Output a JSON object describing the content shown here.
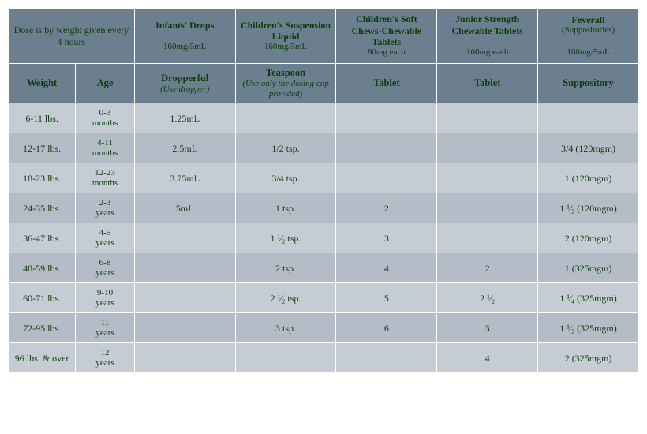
{
  "colors": {
    "header_bg": "#6b7f8f",
    "row_odd": "#c5ccd3",
    "row_even": "#b4bdc7",
    "text": "#0b3d0b",
    "border": "#ffffff"
  },
  "header_note": "Dose is by weight given every 4 hours",
  "products": [
    {
      "title": "Infants' Drops",
      "sub": "160mg/5mL"
    },
    {
      "title": "Children's Suspension Liquid",
      "sub": "160mg/5mL"
    },
    {
      "title": "Children's Soft Chews-Chewable Tablets",
      "sub": "80mg each"
    },
    {
      "title": "Junior Strength Chewable Tablets",
      "sub": "160mg each"
    },
    {
      "title": "Feverall",
      "sub2": "(Suppositories)",
      "sub": "160mg/5mL"
    }
  ],
  "subheaders": {
    "weight": "Weight",
    "age": "Age",
    "c0": {
      "label": "Dropperful",
      "note": "(Use dropper)"
    },
    "c1": {
      "label": "Teaspoon",
      "note": "(Use only the dosing cup provided)"
    },
    "c2": {
      "label": "Tablet"
    },
    "c3": {
      "label": "Tablet"
    },
    "c4": {
      "label": "Suppository"
    }
  },
  "rows": [
    {
      "weight": "6-11 lbs.",
      "age": "0-3 months",
      "c": [
        "1.25mL",
        "",
        "",
        "",
        ""
      ]
    },
    {
      "weight": "12-17 lbs.",
      "age": "4-11 months",
      "c": [
        "2.5mL",
        "1/2 tsp.",
        "",
        "",
        "3/4 (120mgm)"
      ]
    },
    {
      "weight": "18-23 lbs.",
      "age": "12-23 months",
      "c": [
        "3.75mL",
        "3/4 tsp.",
        "",
        "",
        "1 (120mgm)"
      ]
    },
    {
      "weight": "24-35 lbs.",
      "age": "2-3 years",
      "c": [
        "5mL",
        "1 tsp.",
        "2",
        "",
        "1 ¹⁄₂ (120mgm)"
      ]
    },
    {
      "weight": "36-47 lbs.",
      "age": "4-5 years",
      "c": [
        "",
        "1 ¹⁄₂ tsp.",
        "3",
        "",
        "2 (120mgm)"
      ]
    },
    {
      "weight": "48-59 lbs.",
      "age": "6-8 years",
      "c": [
        "",
        "2 tsp.",
        "4",
        "2",
        "1 (325mgm)"
      ]
    },
    {
      "weight": "60-71 lbs.",
      "age": "9-10 years",
      "c": [
        "",
        "2 ¹⁄₂ tsp.",
        "5",
        "2 ¹⁄₂",
        "1 ¹⁄₄ (325mgm)"
      ]
    },
    {
      "weight": "72-95 lbs.",
      "age": "11 years",
      "c": [
        "",
        "3 tsp.",
        "6",
        "3",
        "1 ¹⁄₂ (325mgm)"
      ]
    },
    {
      "weight": "96 lbs. & over",
      "age": "12 years",
      "c": [
        "",
        "",
        "",
        "4",
        "2 (325mgm)"
      ]
    }
  ]
}
